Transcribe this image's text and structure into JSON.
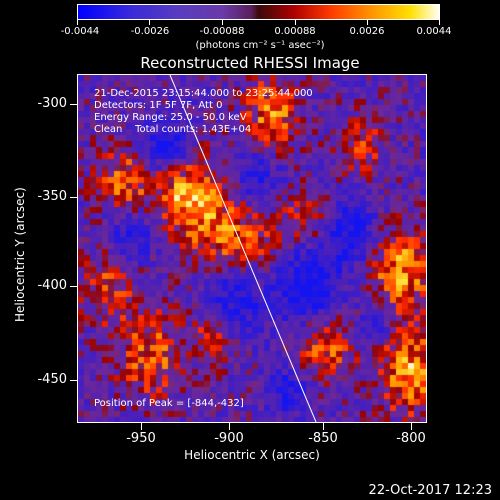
{
  "colorbar": {
    "labels": [
      "-0.0044",
      "-0.0026",
      "-0.00088",
      "0.00088",
      "0.0026",
      "0.0044"
    ],
    "unit": "(photons cm⁻² s⁻¹ asec⁻²)"
  },
  "title": "Reconstructed RHESSI Image",
  "info": {
    "line1": "21-Dec-2015 23:15:44.000 to 23:25:44.000",
    "line2": "Detectors: 1F 5F 7F, Att 0",
    "line3": "Energy Range: 25.0 - 50.0 keV",
    "line4": "Clean    Total counts: 1.43E+04",
    "peak": "Position of Peak = [-844,-432]"
  },
  "axes": {
    "xlabel": "Heliocentric X (arcsec)",
    "ylabel": "Heliocentric Y (arcsec)",
    "xticks": [
      "-950",
      "-900",
      "-850",
      "-800"
    ],
    "yticks": [
      "-300",
      "-350",
      "-400",
      "-450"
    ]
  },
  "timestamp": "22-Oct-2017 12:23"
}
